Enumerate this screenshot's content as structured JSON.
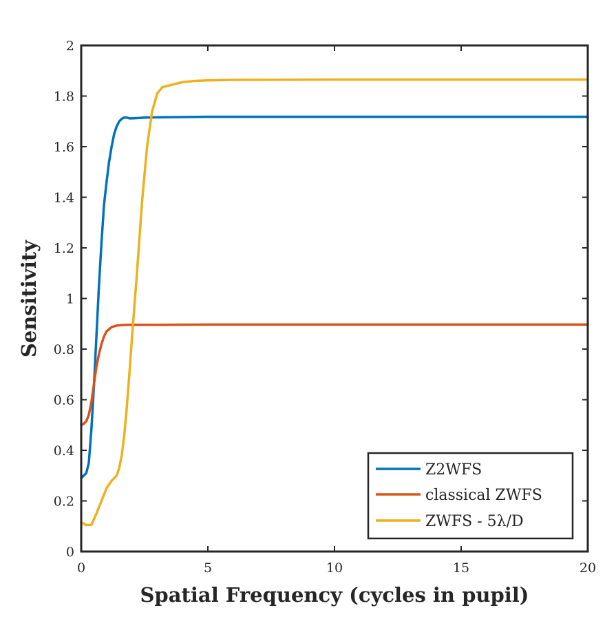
{
  "chart_data": {
    "type": "line",
    "title": "",
    "xlabel": "Spatial Frequency (cycles in pupil)",
    "ylabel": "Sensitivity",
    "xlim": [
      0,
      20
    ],
    "ylim": [
      0,
      2
    ],
    "xticks": [
      0,
      5,
      10,
      15,
      20
    ],
    "xtick_labels": [
      "0",
      "5",
      "10",
      "15",
      "20"
    ],
    "yticks": [
      0,
      0.2,
      0.4,
      0.6,
      0.8,
      1,
      1.2,
      1.4,
      1.6,
      1.8,
      2
    ],
    "ytick_labels": [
      "0",
      "0.2",
      "0.4",
      "0.6",
      "0.8",
      "1",
      "1.2",
      "1.4",
      "1.6",
      "1.8",
      "2"
    ],
    "grid": false,
    "legend_position": "bottom-right",
    "series": [
      {
        "name": "Z2WFS",
        "color": "#0072BD",
        "x": [
          0,
          0.1,
          0.2,
          0.3,
          0.4,
          0.5,
          0.6,
          0.7,
          0.8,
          0.9,
          1.0,
          1.1,
          1.2,
          1.3,
          1.4,
          1.5,
          1.6,
          1.7,
          1.8,
          1.9,
          2.0,
          2.2,
          2.5,
          3.0,
          4.0,
          5.0,
          10,
          15,
          20
        ],
        "y": [
          0.29,
          0.3,
          0.31,
          0.35,
          0.48,
          0.65,
          0.85,
          1.05,
          1.22,
          1.37,
          1.46,
          1.54,
          1.6,
          1.65,
          1.68,
          1.7,
          1.71,
          1.715,
          1.715,
          1.712,
          1.712,
          1.713,
          1.715,
          1.716,
          1.717,
          1.718,
          1.718,
          1.718,
          1.718
        ]
      },
      {
        "name": "classical ZWFS",
        "color": "#D95319",
        "x": [
          0,
          0.1,
          0.2,
          0.3,
          0.4,
          0.5,
          0.6,
          0.7,
          0.8,
          0.9,
          1.0,
          1.2,
          1.4,
          1.6,
          1.8,
          2.0,
          3.0,
          5.0,
          10,
          15,
          20
        ],
        "y": [
          0.5,
          0.505,
          0.515,
          0.54,
          0.59,
          0.66,
          0.73,
          0.78,
          0.82,
          0.85,
          0.87,
          0.887,
          0.893,
          0.895,
          0.896,
          0.896,
          0.896,
          0.897,
          0.897,
          0.897,
          0.897
        ]
      },
      {
        "name": "ZWFS - 5λ/D",
        "color": "#EDB120",
        "x": [
          0,
          0.2,
          0.4,
          0.6,
          0.8,
          1.0,
          1.2,
          1.4,
          1.5,
          1.6,
          1.7,
          1.8,
          1.9,
          2.0,
          2.2,
          2.4,
          2.6,
          2.8,
          3.0,
          3.2,
          3.4,
          3.6,
          3.8,
          4.0,
          4.5,
          5.0,
          6.0,
          10,
          15,
          20
        ],
        "y": [
          0.115,
          0.105,
          0.105,
          0.15,
          0.2,
          0.25,
          0.28,
          0.3,
          0.33,
          0.38,
          0.46,
          0.57,
          0.7,
          0.84,
          1.1,
          1.38,
          1.6,
          1.74,
          1.81,
          1.835,
          1.84,
          1.845,
          1.85,
          1.855,
          1.86,
          1.862,
          1.864,
          1.865,
          1.865,
          1.865
        ]
      }
    ]
  }
}
